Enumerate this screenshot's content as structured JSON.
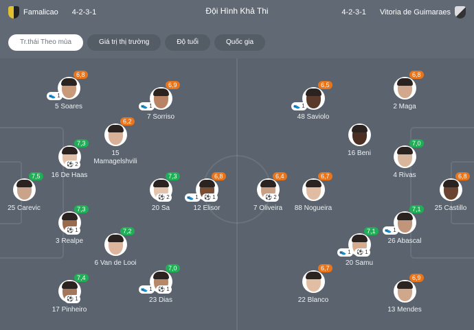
{
  "header": {
    "title": "Đội Hình Khả Thi",
    "home": {
      "name": "Famalicao",
      "formation": "4-2-3-1"
    },
    "away": {
      "name": "Vitoria de Guimaraes",
      "formation": "4-2-3-1"
    }
  },
  "tabs": [
    {
      "label": "Tr.thái Theo mùa",
      "active": true
    },
    {
      "label": "Giá trị thị trường"
    },
    {
      "label": "Độ tuổi"
    },
    {
      "label": "Quốc gia"
    }
  ],
  "colors": {
    "rating_high": "#1fae56",
    "rating_mid": "#e8741c"
  },
  "icons": {
    "assist": "boot-icon",
    "goal": "ball-icon"
  },
  "players": [
    {
      "name": "5 Soares",
      "rating": "6,8",
      "assists": "1"
    },
    {
      "name": "7 Sorriso",
      "rating": "6,9",
      "assists": "1"
    },
    {
      "name": "15 Mamagelshvili",
      "rating": "6,2"
    },
    {
      "name": "16 De Haas",
      "rating": "7,3",
      "goals": "2"
    },
    {
      "name": "25 Carevic",
      "rating": "7,5"
    },
    {
      "name": "20 Sa",
      "rating": "7,3",
      "goals": "2"
    },
    {
      "name": "12 Elisor",
      "rating": "6,8",
      "assists": "1",
      "goals": "1"
    },
    {
      "name": "3 Realpe",
      "rating": "7,3",
      "goals": "1"
    },
    {
      "name": "6 Van de Looi",
      "rating": "7,2"
    },
    {
      "name": "23 Dias",
      "rating": "7,0",
      "assists": "1",
      "goals": "1"
    },
    {
      "name": "17 Pinheiro",
      "rating": "7,4",
      "goals": "1"
    },
    {
      "name": "48 Saviolo",
      "rating": "6,5",
      "assists": "1"
    },
    {
      "name": "2 Maga",
      "rating": "6,8"
    },
    {
      "name": "16 Beni"
    },
    {
      "name": "4 Rivas",
      "rating": "7,0"
    },
    {
      "name": "7 Oliveira",
      "rating": "6,4",
      "goals": "2"
    },
    {
      "name": "88 Nogueira",
      "rating": "6,7"
    },
    {
      "name": "25 Castillo",
      "rating": "6,8"
    },
    {
      "name": "26 Abascal",
      "rating": "7,1",
      "assists": "1"
    },
    {
      "name": "20 Samu",
      "rating": "7,1",
      "assists": "1",
      "goals": "1"
    },
    {
      "name": "22 Blanco",
      "rating": "6,7"
    },
    {
      "name": "13 Mendes",
      "rating": "6,9"
    }
  ]
}
